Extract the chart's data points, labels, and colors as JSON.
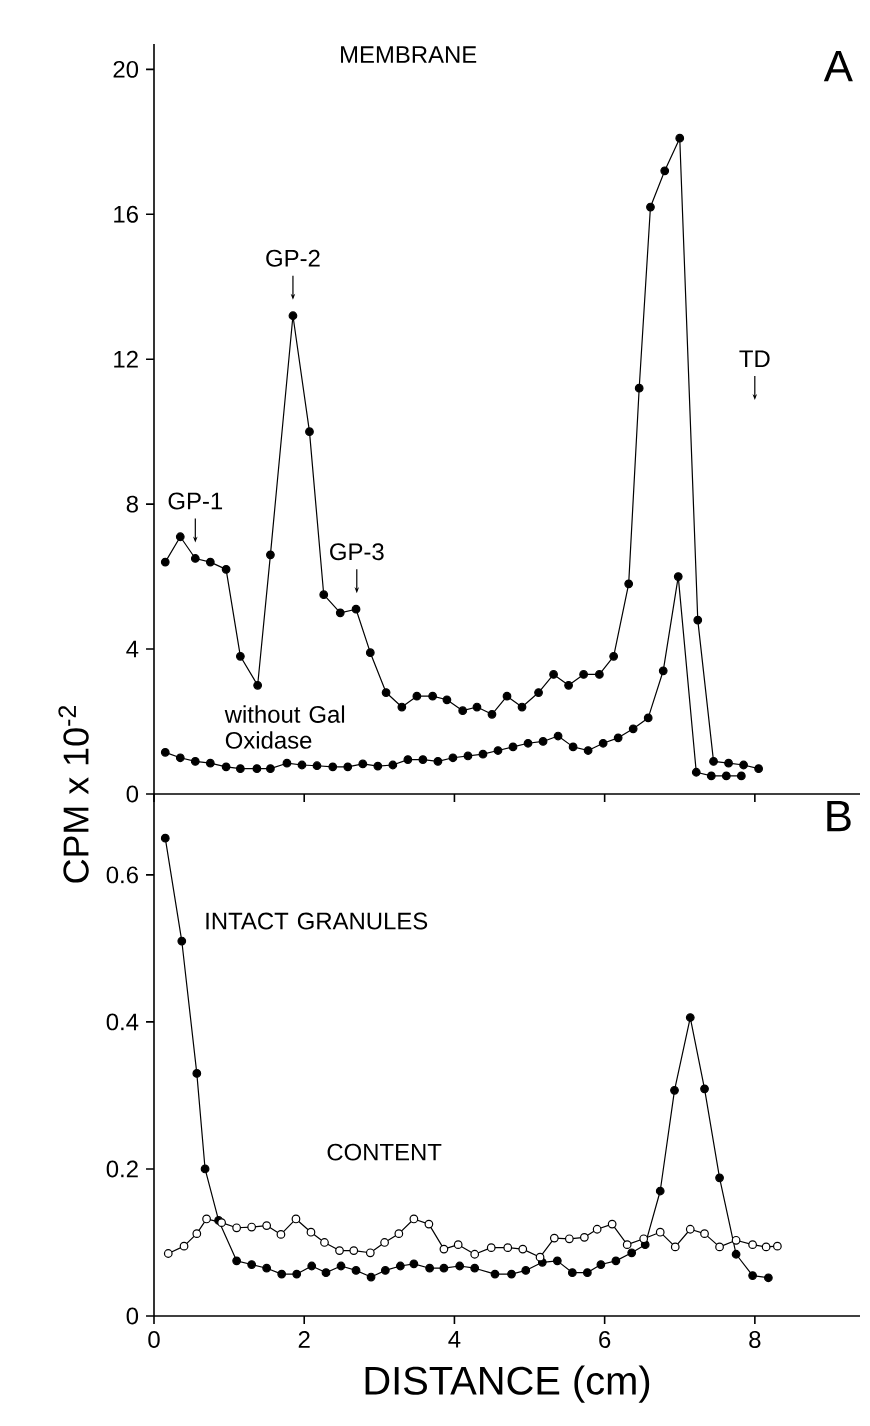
{
  "chart_data": [
    {
      "type": "line",
      "title": "MEMBRANE",
      "ylabel": "CPM x 10$^{-2}$",
      "xlim": [
        0,
        9.4
      ],
      "xticks": [
        {
          "value": 0,
          "label": null
        },
        {
          "value": 2,
          "label": null
        },
        {
          "value": 4,
          "label": null
        },
        {
          "value": 6,
          "label": null
        },
        {
          "value": 8,
          "label": null
        }
      ],
      "ylim": [
        0,
        20.7
      ],
      "yticks": [
        0,
        4,
        8,
        12,
        16,
        20
      ],
      "tick_labels": "y",
      "marker": "circle",
      "grid": false,
      "annotations": [
        "A",
        {
          "text": "GP-1",
          "x": 0.55,
          "y": 6.5
        },
        {
          "text": "GP-2",
          "x": 1.85,
          "y": 13.2
        },
        {
          "text": "GP-3",
          "x": 2.7,
          "y": 5.1
        },
        "TD"
      ],
      "series": [
        {
          "color": "#000000",
          "x": [
            0.15,
            0.35,
            0.55,
            0.75,
            0.96,
            1.15,
            1.38,
            1.55,
            1.85,
            2.07,
            2.26,
            2.48,
            2.69,
            2.88,
            3.09,
            3.3,
            3.5,
            3.71,
            3.9,
            4.11,
            4.3,
            4.5,
            4.7,
            4.9,
            5.12,
            5.32,
            5.52,
            5.72,
            5.93,
            6.12,
            6.32,
            6.46,
            6.61,
            6.8,
            7.0,
            7.24,
            7.45,
            7.65,
            7.85,
            8.05
          ],
          "values": [
            6.4,
            7.1,
            6.5,
            6.4,
            6.2,
            3.8,
            3.0,
            6.6,
            13.2,
            10.0,
            5.5,
            5.0,
            5.1,
            3.9,
            2.8,
            2.4,
            2.7,
            2.7,
            2.6,
            2.3,
            2.4,
            2.2,
            2.7,
            2.4,
            2.8,
            3.3,
            3.0,
            3.3,
            3.3,
            3.8,
            5.8,
            11.2,
            16.2,
            17.2,
            18.1,
            4.8,
            0.9,
            0.85,
            0.8,
            0.7
          ]
        },
        {
          "name": "without Gal Oxidase",
          "color": "#000000",
          "x": [
            0.15,
            0.35,
            0.55,
            0.75,
            0.96,
            1.15,
            1.37,
            1.55,
            1.77,
            1.97,
            2.17,
            2.38,
            2.58,
            2.78,
            2.98,
            3.18,
            3.38,
            3.58,
            3.78,
            3.98,
            4.18,
            4.38,
            4.58,
            4.78,
            4.98,
            5.18,
            5.38,
            5.58,
            5.78,
            5.98,
            6.18,
            6.38,
            6.58,
            6.78,
            6.98,
            7.22,
            7.42,
            7.62,
            7.82
          ],
          "values": [
            1.15,
            1.0,
            0.9,
            0.85,
            0.75,
            0.7,
            0.7,
            0.7,
            0.85,
            0.8,
            0.78,
            0.75,
            0.75,
            0.83,
            0.77,
            0.8,
            0.95,
            0.95,
            0.9,
            1.0,
            1.05,
            1.1,
            1.2,
            1.3,
            1.4,
            1.45,
            1.6,
            1.3,
            1.2,
            1.4,
            1.55,
            1.8,
            2.1,
            3.4,
            6.0,
            0.6,
            0.5,
            0.5,
            0.5
          ]
        }
      ]
    },
    {
      "type": "line",
      "xlabel": "DISTANCE (cm)",
      "xlim": [
        0,
        9.4
      ],
      "xticks": [
        0,
        2,
        4,
        6,
        8
      ],
      "ylim": [
        0,
        0.71
      ],
      "yticks": [
        0,
        0.2,
        0.4,
        0.6
      ],
      "marker": "circle",
      "grid": false,
      "annotations": [
        "B"
      ],
      "series": [
        {
          "name": "INTACT GRANULES",
          "color": "#000000",
          "x": [
            0.15,
            0.37,
            0.57,
            0.68,
            0.86,
            1.1,
            1.3,
            1.5,
            1.7,
            1.9,
            2.1,
            2.29,
            2.49,
            2.69,
            2.89,
            3.08,
            3.28,
            3.46,
            3.67,
            3.86,
            4.07,
            4.27,
            4.54,
            4.76,
            4.95,
            5.17,
            5.37,
            5.57,
            5.77,
            5.95,
            6.15,
            6.36,
            6.54,
            6.74,
            6.93,
            7.14,
            7.33,
            7.53,
            7.75,
            7.97,
            8.18
          ],
          "values": [
            0.65,
            0.51,
            0.33,
            0.2,
            0.13,
            0.075,
            0.07,
            0.065,
            0.057,
            0.057,
            0.068,
            0.059,
            0.068,
            0.062,
            0.053,
            0.062,
            0.068,
            0.071,
            0.065,
            0.065,
            0.068,
            0.065,
            0.057,
            0.057,
            0.062,
            0.073,
            0.075,
            0.059,
            0.059,
            0.07,
            0.075,
            0.086,
            0.097,
            0.17,
            0.307,
            0.406,
            0.309,
            0.188,
            0.084,
            0.055,
            0.052
          ]
        },
        {
          "name": "CONTENT",
          "color": "#000000",
          "x": [
            0.19,
            0.4,
            0.57,
            0.7,
            0.9,
            1.1,
            1.3,
            1.5,
            1.69,
            1.89,
            2.09,
            2.27,
            2.47,
            2.66,
            2.88,
            3.07,
            3.26,
            3.46,
            3.66,
            3.86,
            4.05,
            4.27,
            4.49,
            4.71,
            4.91,
            5.14,
            5.33,
            5.53,
            5.73,
            5.9,
            6.1,
            6.3,
            6.52,
            6.74,
            6.94,
            7.14,
            7.33,
            7.53,
            7.75,
            7.97,
            8.15,
            8.3
          ],
          "values": [
            0.085,
            0.095,
            0.112,
            0.132,
            0.127,
            0.12,
            0.121,
            0.123,
            0.111,
            0.132,
            0.114,
            0.1,
            0.089,
            0.089,
            0.086,
            0.1,
            0.112,
            0.132,
            0.125,
            0.091,
            0.097,
            0.084,
            0.093,
            0.093,
            0.091,
            0.08,
            0.106,
            0.105,
            0.107,
            0.118,
            0.125,
            0.097,
            0.105,
            0.114,
            0.094,
            0.118,
            0.112,
            0.094,
            0.103,
            0.097,
            0.094,
            0.095
          ]
        }
      ]
    }
  ]
}
